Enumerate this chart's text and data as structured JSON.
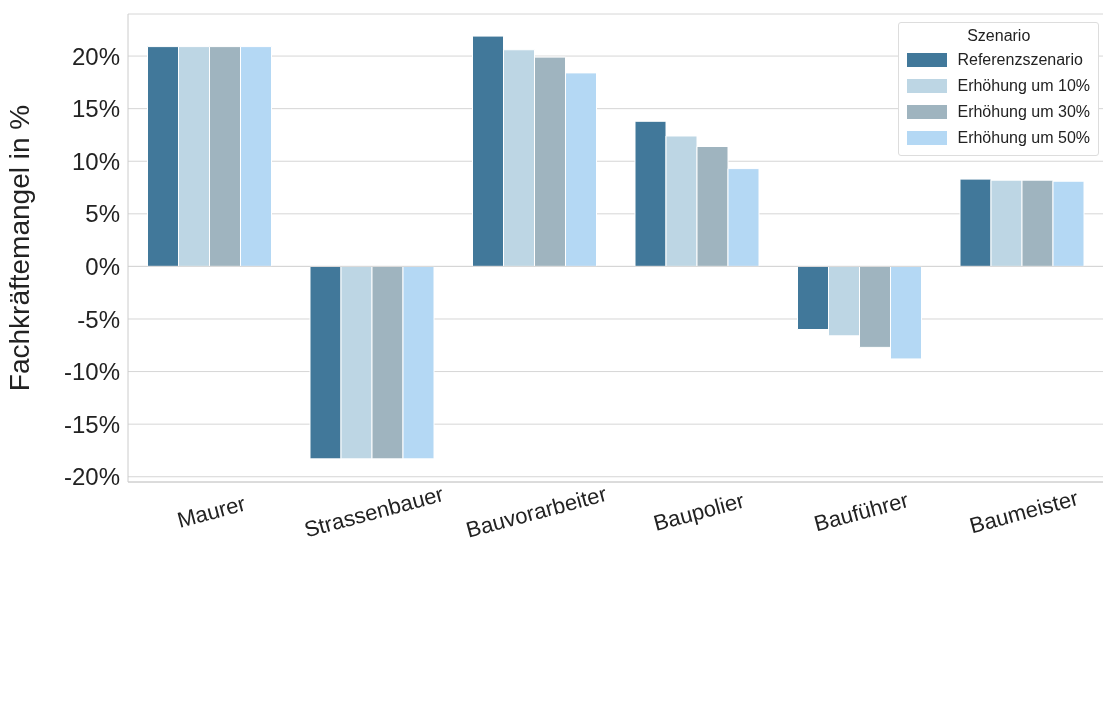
{
  "chart_data": {
    "type": "bar",
    "ylabel": "Fachkräftemangel in %",
    "legend_title": "Szenario",
    "categories": [
      "Maurer",
      "Strassenbauer",
      "Bauvorarbeiter",
      "Baupolier",
      "Bauführer",
      "Baumeister"
    ],
    "series": [
      {
        "name": "Referenzszenario",
        "color": "#41789a",
        "values": [
          20.9,
          -18.3,
          21.9,
          13.8,
          -6.0,
          8.3
        ]
      },
      {
        "name": "Erhöhung um 10%",
        "color": "#bdd6e4",
        "values": [
          20.9,
          -18.3,
          20.6,
          12.4,
          -6.6,
          8.2
        ]
      },
      {
        "name": "Erhöhung um 30%",
        "color": "#9fb4bf",
        "values": [
          20.9,
          -18.3,
          19.9,
          11.4,
          -7.7,
          8.2
        ]
      },
      {
        "name": "Erhöhung um 50%",
        "color": "#b4d8f4",
        "values": [
          20.9,
          -18.3,
          18.4,
          9.3,
          -8.8,
          8.1
        ]
      }
    ],
    "ylim": [
      -20.5,
      24
    ],
    "yticks": [
      {
        "value": -20,
        "label": "-20%"
      },
      {
        "value": -15,
        "label": "-15%"
      },
      {
        "value": -10,
        "label": "-10%"
      },
      {
        "value": -5,
        "label": "-5%"
      },
      {
        "value": 0,
        "label": "0%"
      },
      {
        "value": 5,
        "label": "5%"
      },
      {
        "value": 10,
        "label": "10%"
      },
      {
        "value": 15,
        "label": "15%"
      },
      {
        "value": 20,
        "label": "20%"
      }
    ],
    "grid": "y",
    "legend": "top right"
  }
}
